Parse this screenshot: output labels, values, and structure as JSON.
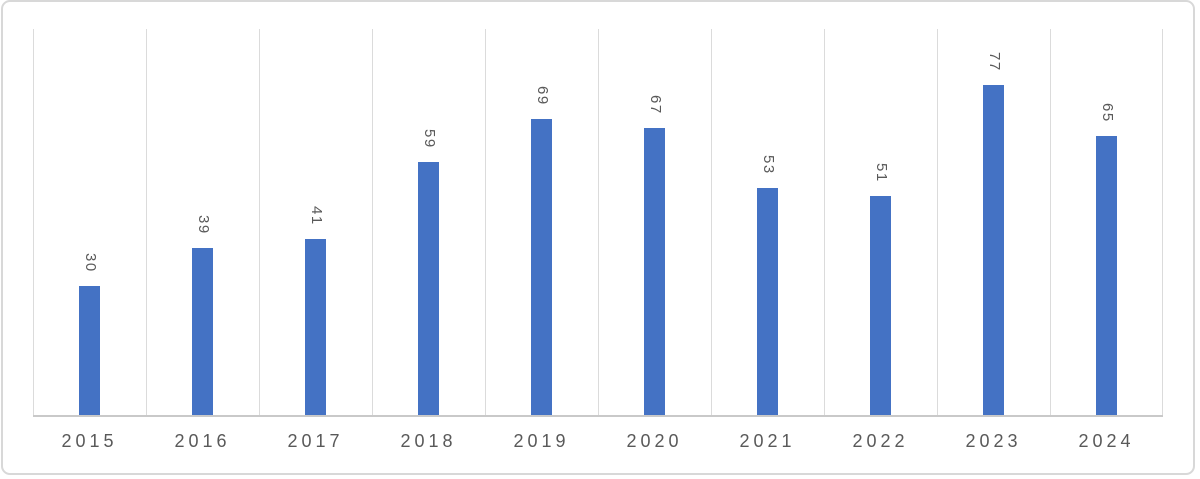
{
  "chart_data": {
    "type": "bar",
    "title": "",
    "xlabel": "",
    "ylabel": "",
    "categories": [
      "2015",
      "2016",
      "2017",
      "2018",
      "2019",
      "2020",
      "2021",
      "2022",
      "2023",
      "2024"
    ],
    "series": [
      {
        "name": "value",
        "values": [
          30,
          39,
          41,
          59,
          69,
          67,
          53,
          51,
          77,
          65
        ]
      }
    ],
    "ylim": [
      0,
      90
    ],
    "legend": "none",
    "grid": "vertical category separator lines only",
    "y_axis_ticks": "hidden",
    "data_labels": {
      "position": "above bar, outside end",
      "orientation": "vertical (rotated 90 degrees clockwise, first digit at top)"
    },
    "colors": {
      "bar": "#4472c4",
      "data_label_text": "#595959",
      "tick_label_text": "#595959",
      "gridline": "#dbdbdb",
      "axis_line": "#c9c9c9",
      "frame_border": "#d8d8d8",
      "background": "#ffffff"
    }
  }
}
